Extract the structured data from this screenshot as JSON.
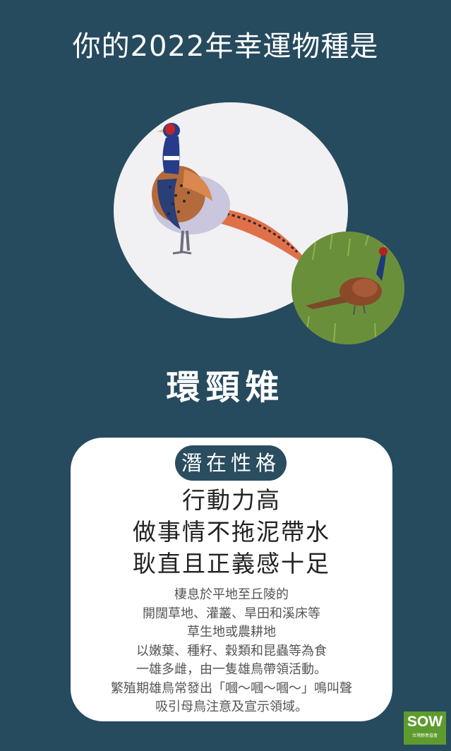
{
  "header": {
    "title": "你的2022年幸運物種是"
  },
  "species": {
    "name": "環頸雉"
  },
  "card": {
    "badge_label": "潛在性格",
    "traits": [
      "行動力高",
      "做事情不拖泥帶水",
      "耿直且正義感十足"
    ],
    "description_lines": [
      "棲息於平地至丘陵的",
      "開闊草地、灌叢、旱田和溪床等",
      "草生地或農耕地",
      "以嫩葉、種籽、穀類和昆蟲等為食",
      "一雄多雌，由一隻雄鳥帶領活動。",
      "繁殖期雄鳥常發出「嘓～嘓～嘓～」鳴叫聲",
      "吸引母鳥注意及宣示領域。"
    ]
  },
  "logo": {
    "mark": "SOW",
    "sub": "台灣野鳥協會"
  },
  "colors": {
    "background": "#264a5e",
    "card": "#ffffff",
    "badge": "#2a4d5f",
    "logo": "#5e9b2f"
  }
}
